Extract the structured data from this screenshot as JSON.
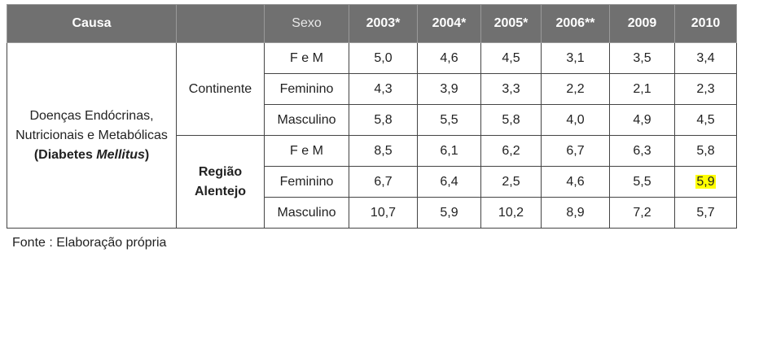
{
  "table": {
    "header": [
      "Causa",
      "",
      "Sexo",
      "2003*",
      "2004*",
      "2005*",
      "2006**",
      "2009",
      "2010"
    ],
    "cause": {
      "text": "Doenças Endócrinas, Nutricionais e Metabólicas",
      "open": "(",
      "bold": "Diabetes",
      "italic": "Mellitus",
      "close": ")"
    },
    "groups": [
      {
        "region": "Continente",
        "rows": [
          {
            "sex": "F e M",
            "values": [
              "5,0",
              "4,6",
              "4,5",
              "3,1",
              "3,5",
              "3,4"
            ]
          },
          {
            "sex": "Feminino",
            "values": [
              "4,3",
              "3,9",
              "3,3",
              "2,2",
              "2,1",
              "2,3"
            ]
          },
          {
            "sex": "Masculino",
            "values": [
              "5,8",
              "5,5",
              "5,8",
              "4,0",
              "4,9",
              "4,5"
            ]
          }
        ]
      },
      {
        "region": "Região Alentejo",
        "rows": [
          {
            "sex": "F e M",
            "values": [
              "8,5",
              "6,1",
              "6,2",
              "6,7",
              "6,3",
              "5,8"
            ]
          },
          {
            "sex": "Feminino",
            "values": [
              "6,7",
              "6,4",
              "2,5",
              "4,6",
              "5,5",
              "5,9"
            ]
          },
          {
            "sex": "Masculino",
            "values": [
              "10,7",
              "5,9",
              "10,2",
              "8,9",
              "7,2",
              "5,7"
            ]
          }
        ]
      }
    ],
    "highlight": {
      "group": 1,
      "row": 1,
      "column": 5,
      "color": "#ffff00"
    }
  },
  "footer": {
    "source": "Fonte : Elaboração própria"
  }
}
